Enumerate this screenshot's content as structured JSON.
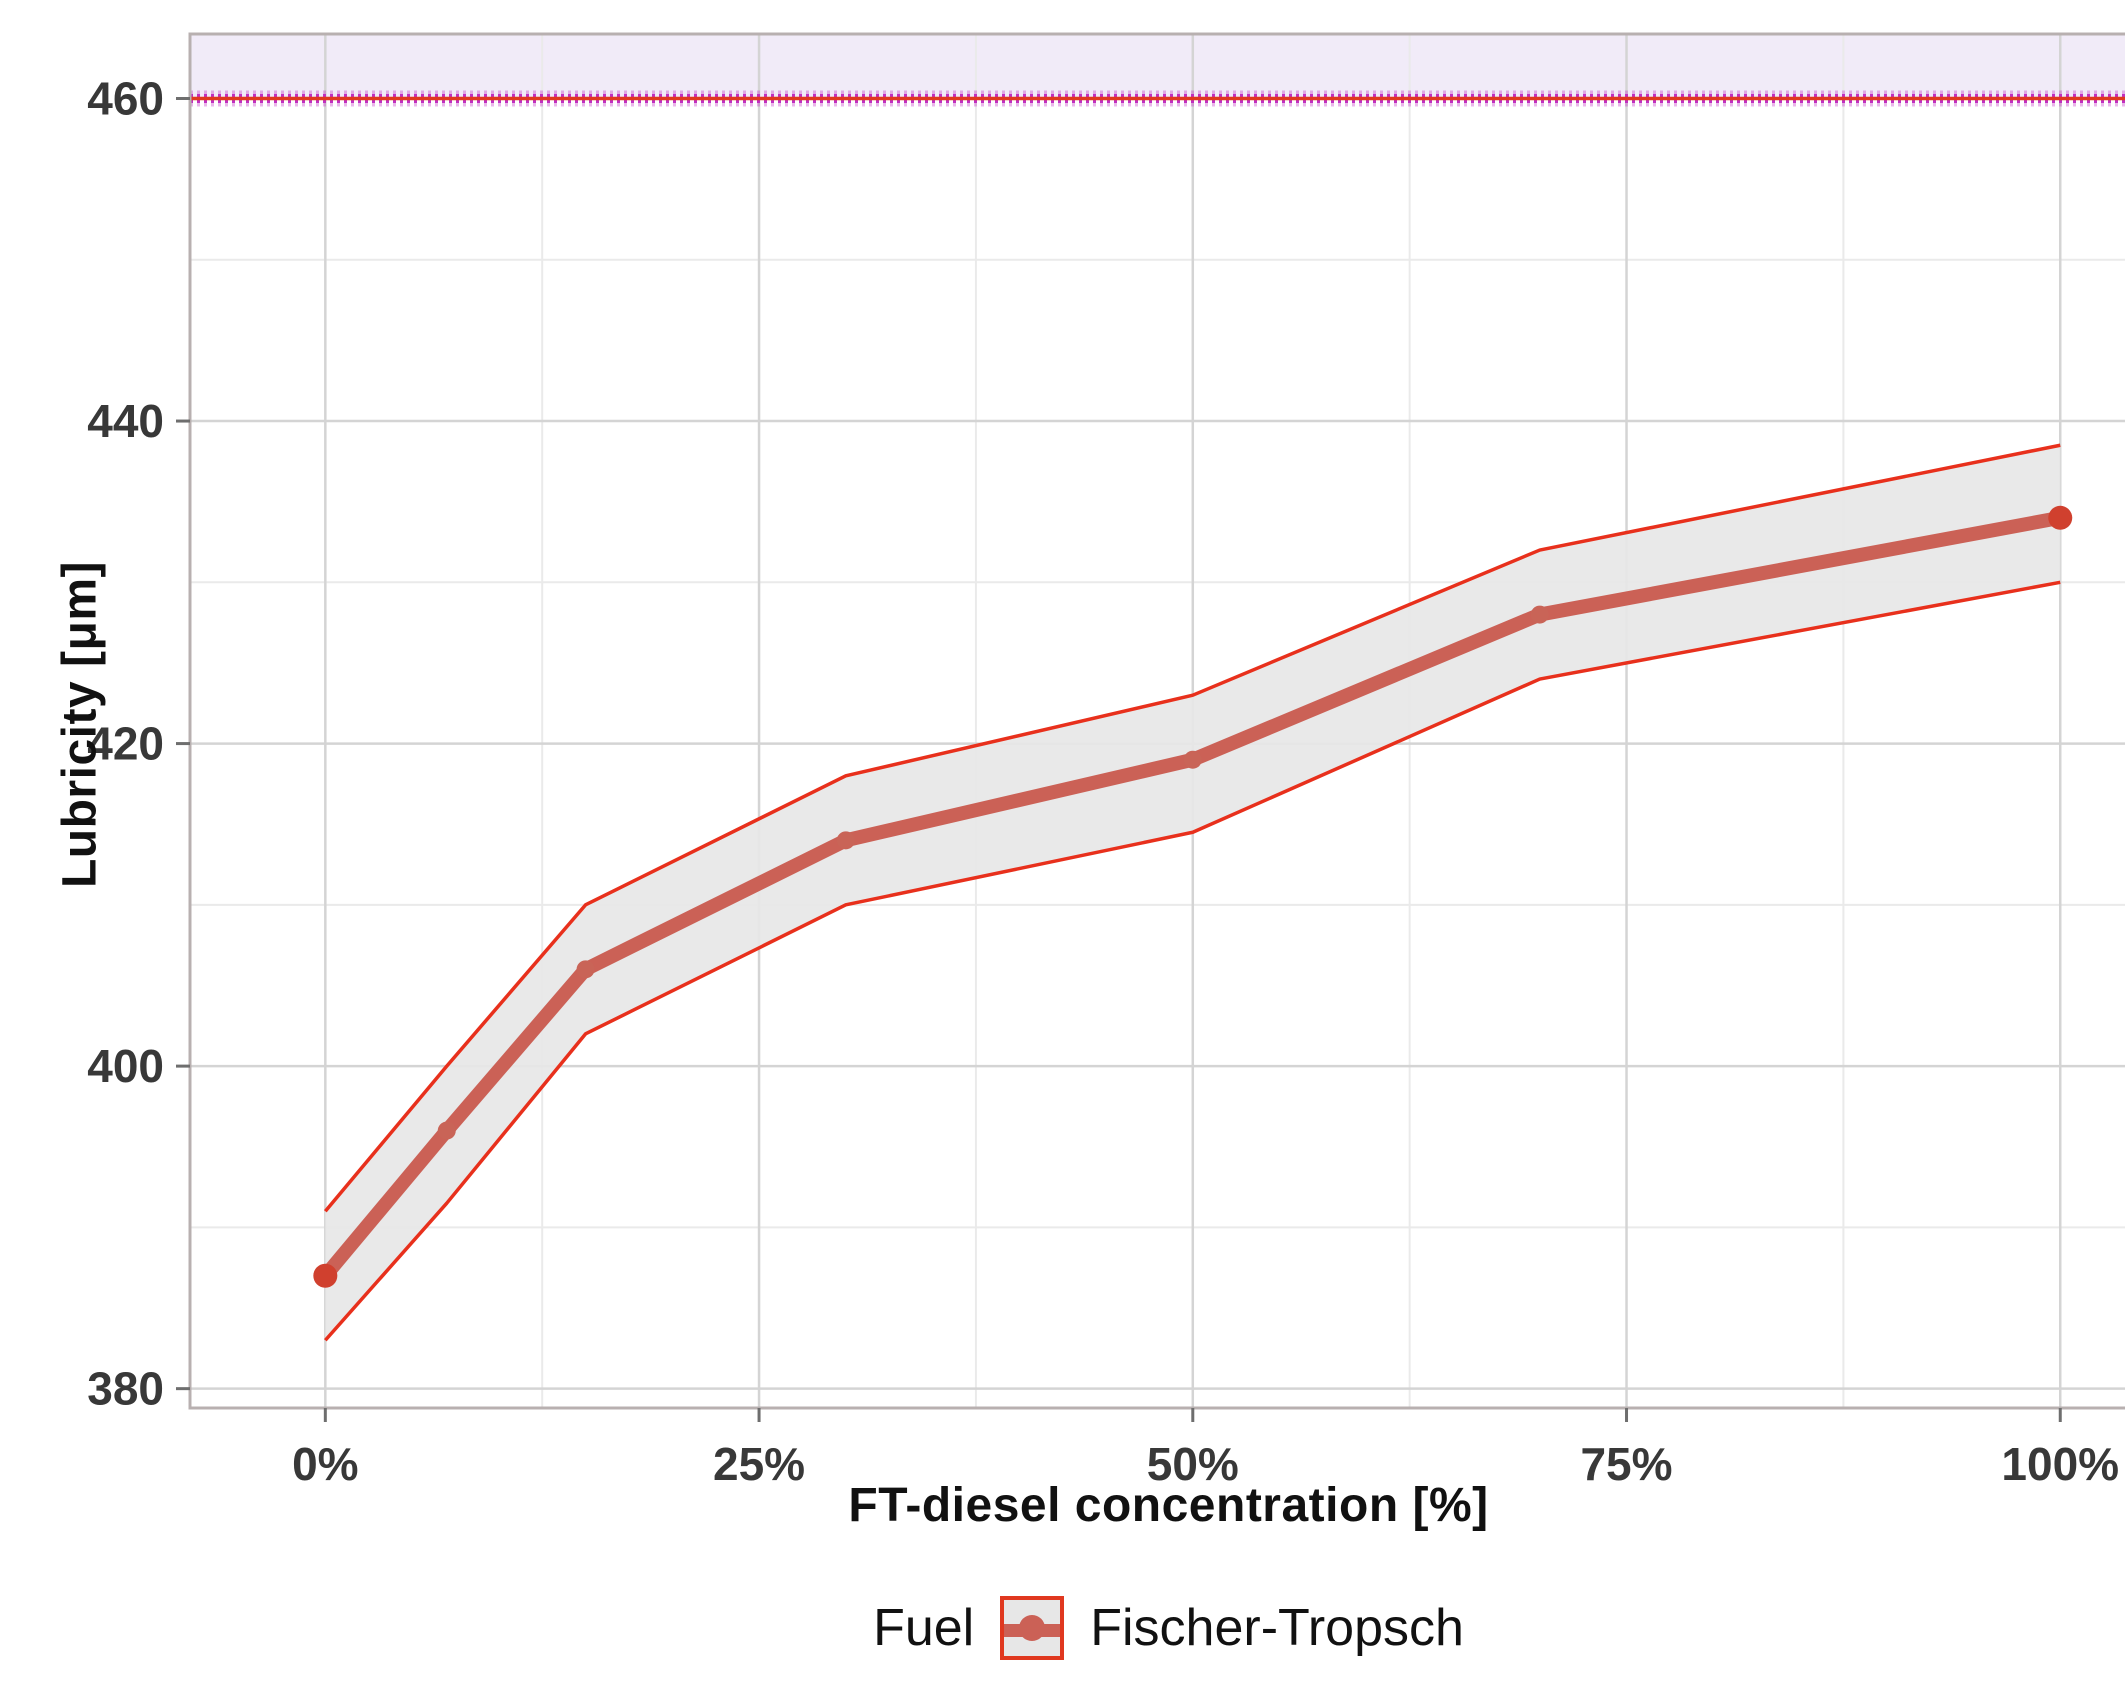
{
  "chart_data": {
    "type": "line",
    "title": "",
    "xlabel": "FT-diesel concentration [%]",
    "ylabel": "Lubricity [μm]",
    "xlim": [
      -7.8,
      105
    ],
    "ylim": [
      378.8,
      464
    ],
    "grid": "on",
    "x_ticks": [
      {
        "value": 0,
        "label": "0%"
      },
      {
        "value": 25,
        "label": "25%"
      },
      {
        "value": 50,
        "label": "50%"
      },
      {
        "value": 75,
        "label": "75%"
      },
      {
        "value": 100,
        "label": "100%"
      }
    ],
    "x_minor_ticks": [
      12.5,
      37.5,
      62.5,
      87.5
    ],
    "y_ticks": [
      {
        "value": 380,
        "label": "380"
      },
      {
        "value": 400,
        "label": "400"
      },
      {
        "value": 420,
        "label": "420"
      },
      {
        "value": 440,
        "label": "440"
      },
      {
        "value": 460,
        "label": "460"
      }
    ],
    "y_minor_ticks": [
      390,
      410,
      430,
      450
    ],
    "series": [
      {
        "name": "Fischer-Tropsch",
        "x": [
          0,
          7,
          15,
          30,
          50,
          70,
          100
        ],
        "mean": [
          387,
          396,
          406,
          414,
          419,
          428,
          434
        ],
        "lower": [
          383,
          391.5,
          402,
          410,
          414.5,
          424,
          430
        ],
        "upper": [
          391,
          400,
          410,
          418,
          423,
          432,
          438.5
        ]
      }
    ],
    "reference_line": {
      "y": 460
    },
    "shaded_region": {
      "from": 460,
      "to": 464
    },
    "legend": {
      "title": "Fuel",
      "entries": [
        {
          "label": "Fischer-Tropsch"
        }
      ],
      "position": "bottom"
    },
    "colors": {
      "mean_line": "#cb6156",
      "point_end": "#d0402e",
      "point_mid": "#c96457",
      "ci_border": "#e8301c",
      "ci_fill": "#e7e7e7",
      "ref_magenta": "#c12fc1",
      "ref_red": "#e0381f",
      "region_fill": "#f1ebf8",
      "grid_major": "#d4d4d4",
      "grid_minor": "#eaeaea",
      "panel_border": "#b8b0b0",
      "tick_text": "#383838"
    }
  }
}
